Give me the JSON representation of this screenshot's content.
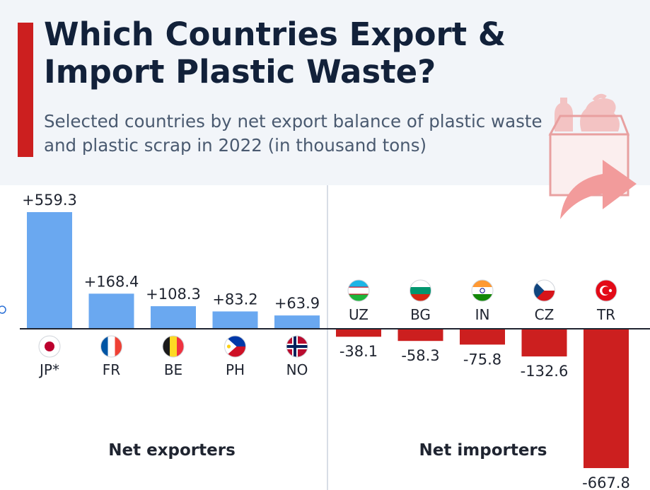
{
  "header": {
    "title": "Which Countries Export & Import Plastic Waste?",
    "subtitle": "Selected countries by net export balance of plastic waste and plastic scrap in 2022 (in thousand tons)"
  },
  "colors": {
    "accent": "#cc1f1f",
    "exporter_bar": "#6aa8f0",
    "importer_bar": "#cc1f1f",
    "title": "#12213a",
    "header_bg": "#f2f5f9"
  },
  "icons": {
    "illustration": "box-with-plastic-waste-and-export-arrow-icon"
  },
  "chart_data": {
    "type": "bar",
    "title": "Which Countries Export & Import Plastic Waste?",
    "subtitle": "Selected countries by net export balance of plastic waste and plastic scrap in 2022 (in thousand tons)",
    "unit": "thousand tons",
    "groups": [
      {
        "name": "Net exporters",
        "categories": [
          "JP*",
          "FR",
          "BE",
          "PH",
          "NO"
        ],
        "values": [
          559.3,
          168.4,
          108.3,
          83.2,
          63.9
        ],
        "labels": [
          "+559.3",
          "+168.4",
          "+108.3",
          "+83.2",
          "+63.9"
        ],
        "flags": [
          "japan-flag-icon",
          "france-flag-icon",
          "belgium-flag-icon",
          "philippines-flag-icon",
          "norway-flag-icon"
        ]
      },
      {
        "name": "Net importers",
        "categories": [
          "UZ",
          "BG",
          "IN",
          "CZ",
          "TR"
        ],
        "values": [
          -38.1,
          -58.3,
          -75.8,
          -132.6,
          -667.8
        ],
        "labels": [
          "-38.1",
          "-58.3",
          "-75.8",
          "-132.6",
          "-667.8"
        ],
        "flags": [
          "uzbekistan-flag-icon",
          "bulgaria-flag-icon",
          "india-flag-icon",
          "czechia-flag-icon",
          "turkey-flag-icon"
        ]
      }
    ],
    "grid": false,
    "legend": "none"
  }
}
